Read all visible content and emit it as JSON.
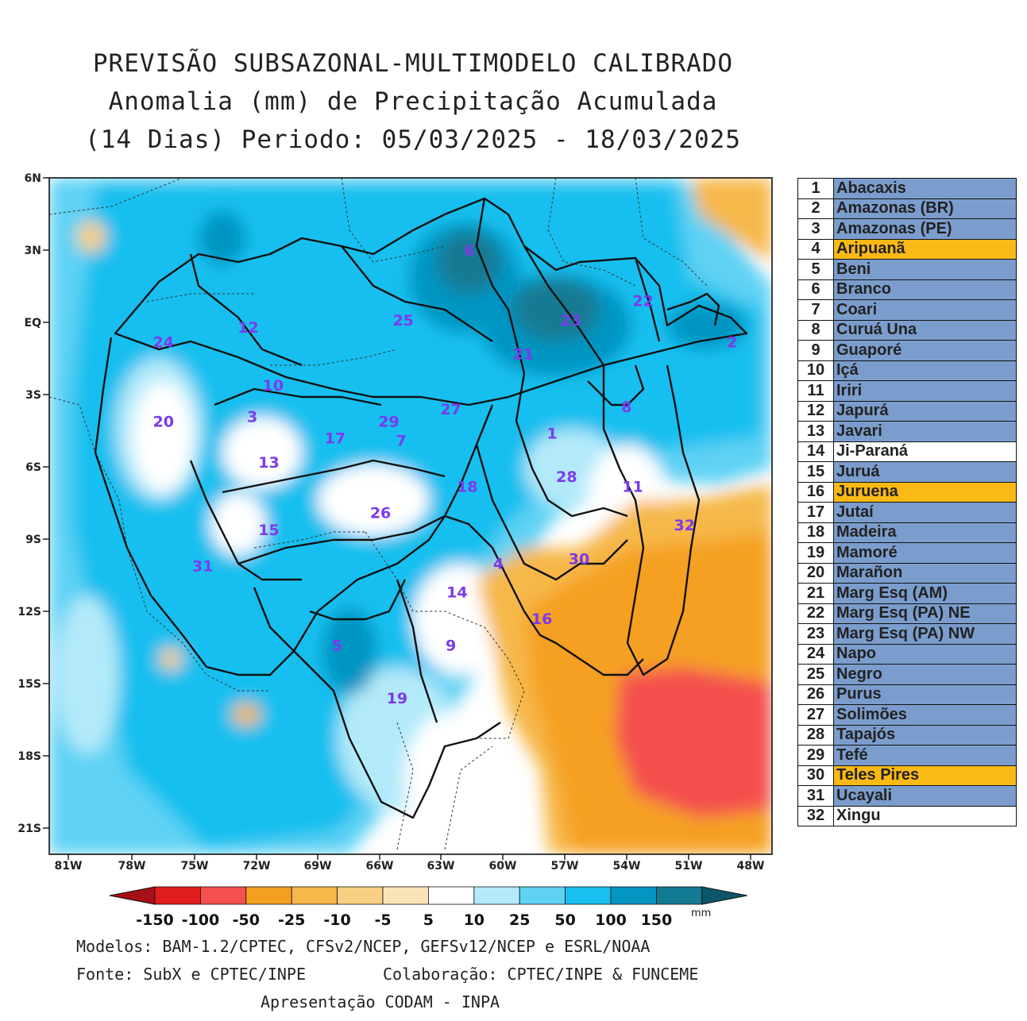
{
  "title": {
    "line1": "PREVISÃO SUBSAZONAL-MULTIMODELO CALIBRADO",
    "line2": "Anomalia (mm) de Precipitação Acumulada",
    "line3": "(14 Dias) Periodo: 05/03/2025 - 18/03/2025"
  },
  "map": {
    "lat_labels": [
      "6N",
      "3N",
      "EQ",
      "3S",
      "6S",
      "9S",
      "12S",
      "15S",
      "18S",
      "21S"
    ],
    "lon_labels": [
      "81W",
      "78W",
      "75W",
      "72W",
      "69W",
      "66W",
      "63W",
      "60W",
      "57W",
      "54W",
      "51W",
      "48W"
    ],
    "basin_labels": [
      {
        "id": "1",
        "lon": -57.6,
        "lat": -4.6
      },
      {
        "id": "2",
        "lon": -48.9,
        "lat": -0.8
      },
      {
        "id": "3",
        "lon": -72.1,
        "lat": -3.9
      },
      {
        "id": "4",
        "lon": -60.2,
        "lat": -10.0
      },
      {
        "id": "5",
        "lon": -68.0,
        "lat": -13.4
      },
      {
        "id": "6",
        "lon": -61.6,
        "lat": 3.0
      },
      {
        "id": "7",
        "lon": -64.9,
        "lat": -4.9
      },
      {
        "id": "8",
        "lon": -54.0,
        "lat": -3.5
      },
      {
        "id": "9",
        "lon": -62.5,
        "lat": -13.4
      },
      {
        "id": "10",
        "lon": -71.1,
        "lat": -2.6
      },
      {
        "id": "11",
        "lon": -53.7,
        "lat": -6.8
      },
      {
        "id": "12",
        "lon": -72.3,
        "lat": -0.2
      },
      {
        "id": "13",
        "lon": -71.3,
        "lat": -5.8
      },
      {
        "id": "14",
        "lon": -62.2,
        "lat": -11.2
      },
      {
        "id": "15",
        "lon": -71.3,
        "lat": -8.6
      },
      {
        "id": "16",
        "lon": -58.1,
        "lat": -12.3
      },
      {
        "id": "17",
        "lon": -68.1,
        "lat": -4.8
      },
      {
        "id": "18",
        "lon": -61.7,
        "lat": -6.8
      },
      {
        "id": "19",
        "lon": -65.1,
        "lat": -15.6
      },
      {
        "id": "20",
        "lon": -76.4,
        "lat": -4.1
      },
      {
        "id": "21",
        "lon": -59.0,
        "lat": -1.3
      },
      {
        "id": "22",
        "lon": -53.2,
        "lat": 0.9
      },
      {
        "id": "23",
        "lon": -56.7,
        "lat": 0.1
      },
      {
        "id": "24",
        "lon": -76.4,
        "lat": -0.8
      },
      {
        "id": "25",
        "lon": -64.8,
        "lat": 0.1
      },
      {
        "id": "26",
        "lon": -65.9,
        "lat": -7.9
      },
      {
        "id": "27",
        "lon": -62.5,
        "lat": -3.6
      },
      {
        "id": "28",
        "lon": -56.9,
        "lat": -6.4
      },
      {
        "id": "29",
        "lon": -65.5,
        "lat": -4.1
      },
      {
        "id": "30",
        "lon": -56.3,
        "lat": -9.8
      },
      {
        "id": "31",
        "lon": -74.5,
        "lat": -10.1
      },
      {
        "id": "32",
        "lon": -51.2,
        "lat": -8.4
      }
    ]
  },
  "colorbar": {
    "colors": [
      "#a50f15",
      "#e11d1d",
      "#f4504e",
      "#f5a020",
      "#f6b84a",
      "#f8cf82",
      "#fbe3b8",
      "#ffffff",
      "#b3eaf9",
      "#5fd2f4",
      "#18bfef",
      "#0495c2",
      "#127a93",
      "#0d5568"
    ],
    "labels": [
      "-150",
      "-100",
      "-50",
      "-25",
      "-10",
      "-5",
      "5",
      "10",
      "25",
      "50",
      "100",
      "150"
    ],
    "unit": "mm"
  },
  "basins": [
    {
      "num": "1",
      "name": "Abacaxis",
      "color": "#7b9dcd"
    },
    {
      "num": "2",
      "name": "Amazonas (BR)",
      "color": "#7b9dcd"
    },
    {
      "num": "3",
      "name": "Amazonas (PE)",
      "color": "#7b9dcd"
    },
    {
      "num": "4",
      "name": "Aripuanã",
      "color": "#fbb916"
    },
    {
      "num": "5",
      "name": "Beni",
      "color": "#7b9dcd"
    },
    {
      "num": "6",
      "name": "Branco",
      "color": "#7b9dcd"
    },
    {
      "num": "7",
      "name": "Coari",
      "color": "#7b9dcd"
    },
    {
      "num": "8",
      "name": "Curuá Una",
      "color": "#7b9dcd"
    },
    {
      "num": "9",
      "name": "Guaporé",
      "color": "#7b9dcd"
    },
    {
      "num": "10",
      "name": "Içá",
      "color": "#7b9dcd"
    },
    {
      "num": "11",
      "name": "Iriri",
      "color": "#7b9dcd"
    },
    {
      "num": "12",
      "name": "Japurá",
      "color": "#7b9dcd"
    },
    {
      "num": "13",
      "name": "Javari",
      "color": "#7b9dcd"
    },
    {
      "num": "14",
      "name": "Ji-Paraná",
      "color": "#ffffff"
    },
    {
      "num": "15",
      "name": "Juruá",
      "color": "#7b9dcd"
    },
    {
      "num": "16",
      "name": "Juruena",
      "color": "#fbb916"
    },
    {
      "num": "17",
      "name": "Jutaí",
      "color": "#7b9dcd"
    },
    {
      "num": "18",
      "name": "Madeira",
      "color": "#7b9dcd"
    },
    {
      "num": "19",
      "name": "Mamoré",
      "color": "#7b9dcd"
    },
    {
      "num": "20",
      "name": "Marañon",
      "color": "#7b9dcd"
    },
    {
      "num": "21",
      "name": "Marg Esq (AM)",
      "color": "#7b9dcd"
    },
    {
      "num": "22",
      "name": "Marg Esq (PA) NE",
      "color": "#7b9dcd"
    },
    {
      "num": "23",
      "name": "Marg Esq (PA) NW",
      "color": "#7b9dcd"
    },
    {
      "num": "24",
      "name": "Napo",
      "color": "#7b9dcd"
    },
    {
      "num": "25",
      "name": "Negro",
      "color": "#7b9dcd"
    },
    {
      "num": "26",
      "name": "Purus",
      "color": "#7b9dcd"
    },
    {
      "num": "27",
      "name": "Solimões",
      "color": "#7b9dcd"
    },
    {
      "num": "28",
      "name": "Tapajós",
      "color": "#7b9dcd"
    },
    {
      "num": "29",
      "name": "Tefé",
      "color": "#7b9dcd"
    },
    {
      "num": "30",
      "name": "Teles Pires",
      "color": "#fbb916"
    },
    {
      "num": "31",
      "name": "Ucayali",
      "color": "#7b9dcd"
    },
    {
      "num": "32",
      "name": "Xingu",
      "color": "#ffffff"
    }
  ],
  "footer": {
    "models": "Modelos: BAM-1.2/CPTEC, CFSv2/NCEP, GEFSv12/NCEP e ESRL/NOAA",
    "source": "Fonte: SubX e CPTEC/INPE",
    "collab": "Colaboração: CPTEC/INPE & FUNCEME",
    "presentation": "Apresentação CODAM - INPA"
  }
}
